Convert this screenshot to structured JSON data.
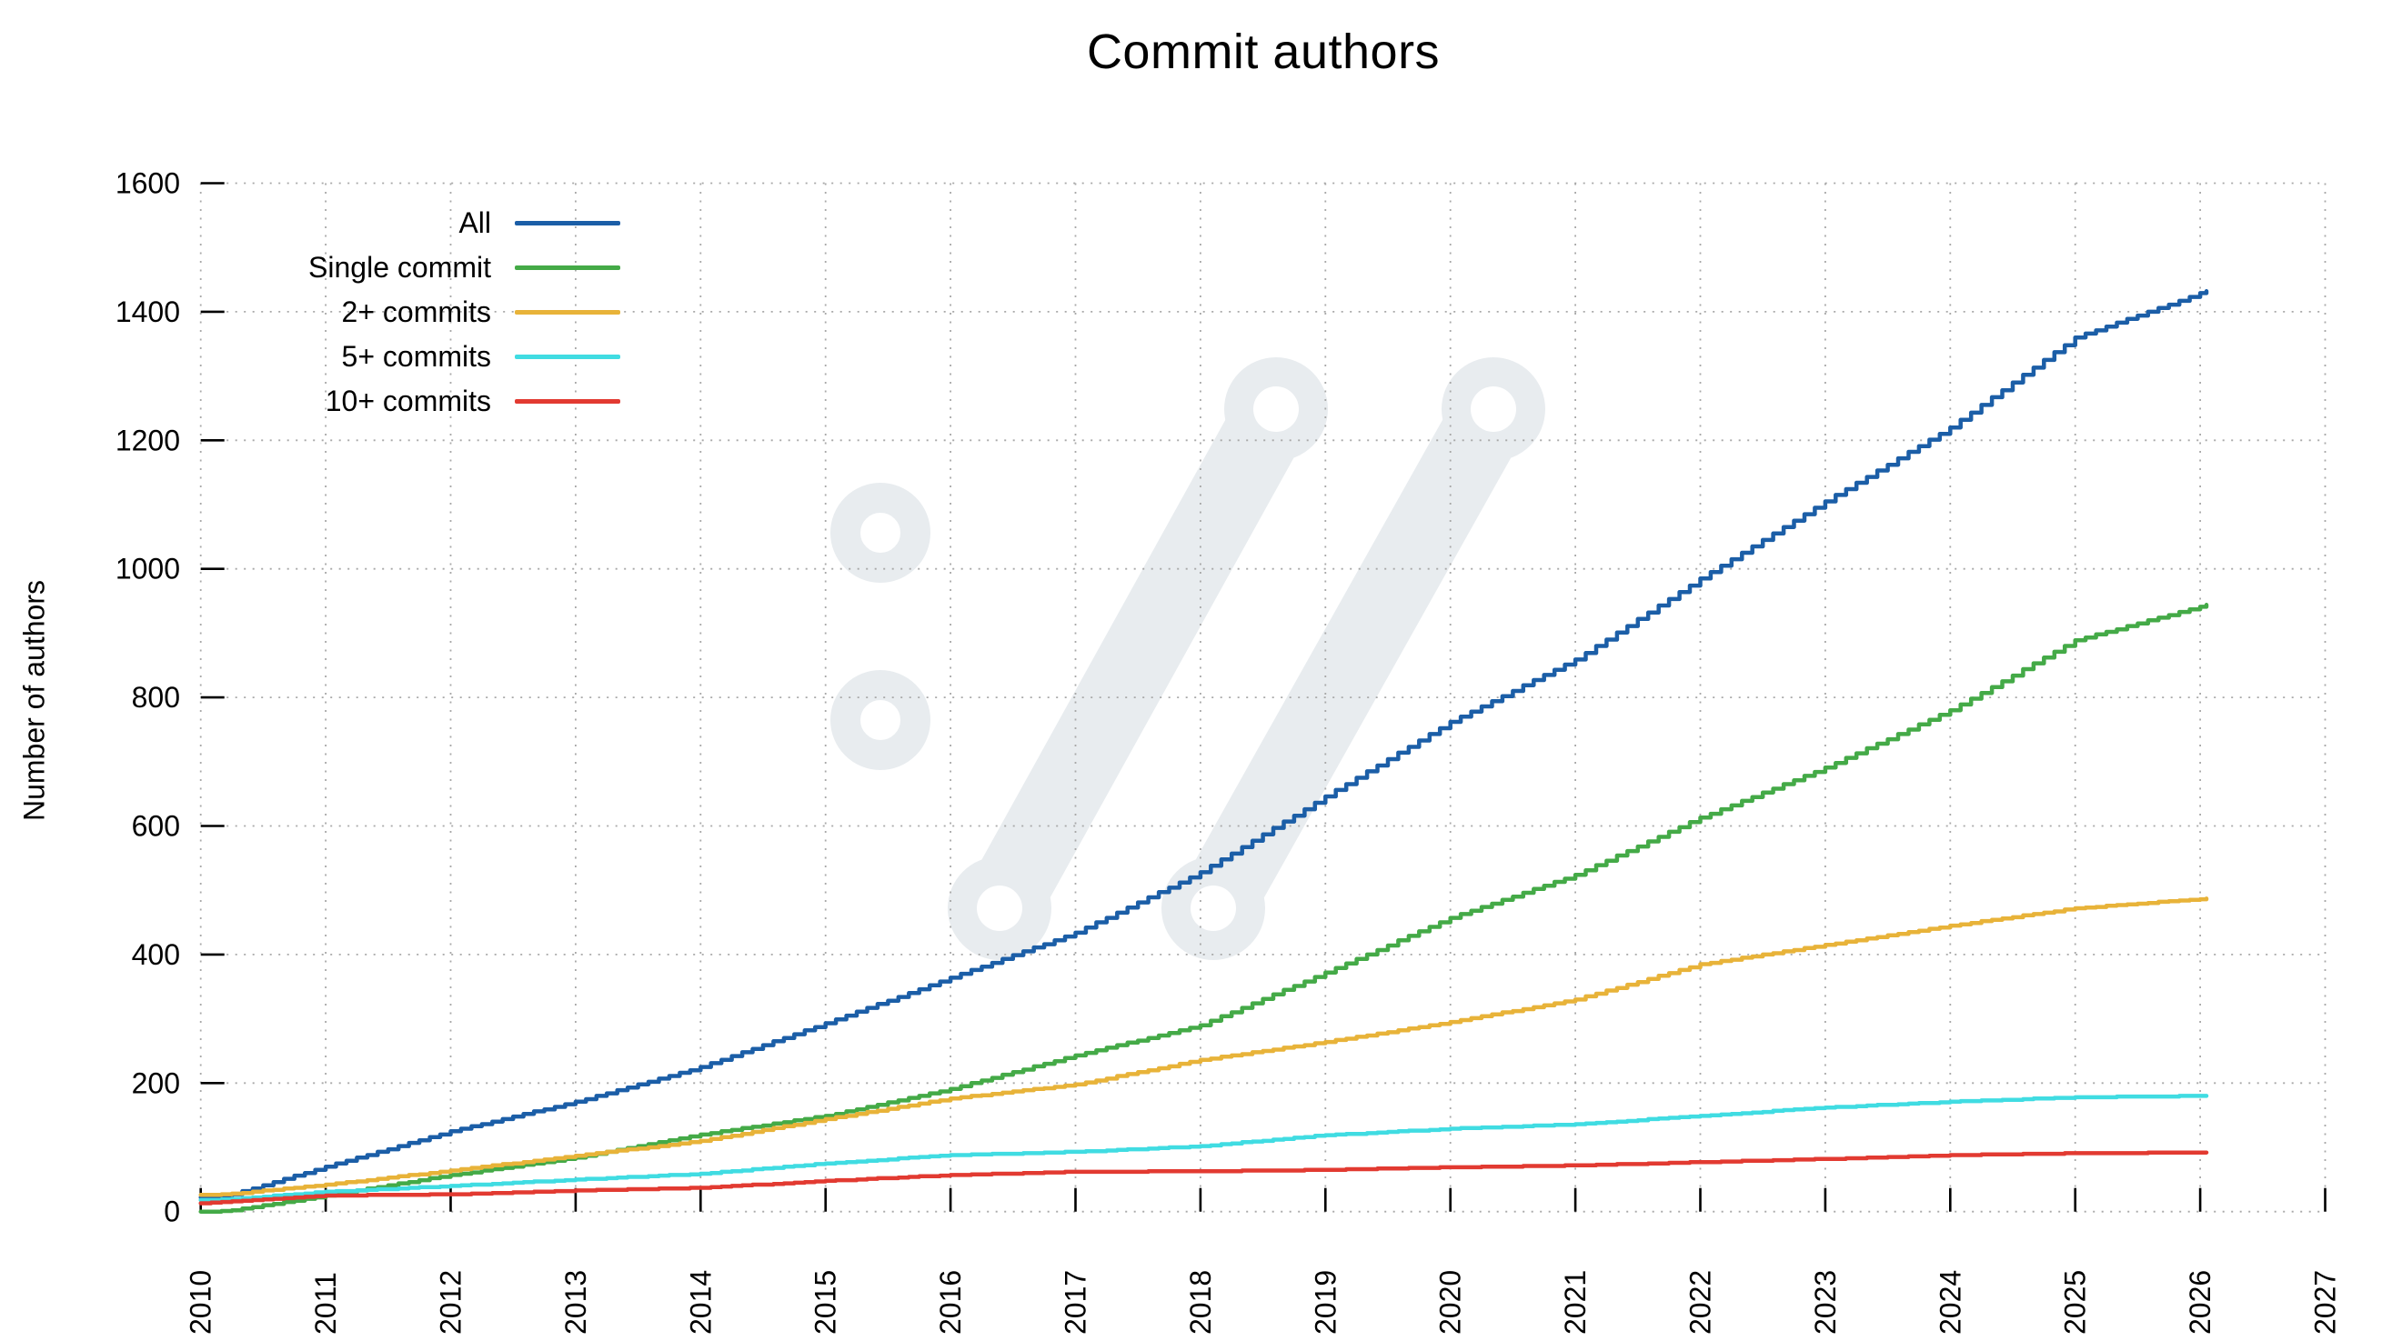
{
  "chart_data": {
    "type": "line",
    "title": "Commit authors",
    "xlabel": "",
    "ylabel": "Number of authors",
    "x_range": [
      2010,
      2027
    ],
    "y_range": [
      0,
      1600
    ],
    "x_ticks": [
      2010,
      2011,
      2012,
      2013,
      2014,
      2015,
      2016,
      2017,
      2018,
      2019,
      2020,
      2021,
      2022,
      2023,
      2024,
      2025,
      2026,
      2027
    ],
    "y_ticks": [
      0,
      200,
      400,
      600,
      800,
      1000,
      1200,
      1400,
      1600
    ],
    "grid": "dotted",
    "grid_color": "#a8a8a8",
    "axis_color": "#000000",
    "legend_position": "top-left-inside",
    "watermark_icon": "pipewire-logo-watermark",
    "watermark_color": "#e8ecef",
    "series": [
      {
        "name": "All",
        "color": "#1b5ea7",
        "anchors": {
          "x": [
            2010,
            2010.2,
            2011,
            2012,
            2013,
            2014,
            2015,
            2016,
            2017,
            2018,
            2019,
            2020,
            2021,
            2022,
            2023,
            2024,
            2025,
            2026.05
          ],
          "y": [
            22,
            24,
            70,
            125,
            171,
            225,
            293,
            364,
            434,
            528,
            646,
            762,
            859,
            985,
            1105,
            1220,
            1360,
            1432
          ]
        }
      },
      {
        "name": "Single commit",
        "color": "#44aa47",
        "anchors": {
          "x": [
            2010,
            2010.2,
            2011,
            2012,
            2013,
            2014,
            2015,
            2016,
            2017,
            2018,
            2019,
            2020,
            2021,
            2022,
            2023,
            2024,
            2025,
            2026.05
          ],
          "y": [
            0,
            1,
            25,
            57,
            84,
            120,
            149,
            191,
            243,
            290,
            372,
            457,
            524,
            613,
            691,
            780,
            889,
            944
          ]
        }
      },
      {
        "name": "2+ commits",
        "color": "#e8b339",
        "anchors": {
          "x": [
            2010,
            2010.2,
            2011,
            2012,
            2013,
            2014,
            2015,
            2016,
            2017,
            2018,
            2019,
            2020,
            2021,
            2022,
            2023,
            2024,
            2025,
            2026.05
          ],
          "y": [
            26,
            27,
            42,
            64,
            87,
            110,
            144,
            176,
            198,
            236,
            264,
            295,
            330,
            385,
            415,
            445,
            472,
            487
          ]
        }
      },
      {
        "name": "5+ commits",
        "color": "#40dce2",
        "anchors": {
          "x": [
            2010,
            2010.2,
            2011,
            2012,
            2013,
            2014,
            2015,
            2016,
            2017,
            2018,
            2019,
            2020,
            2021,
            2022,
            2023,
            2024,
            2025,
            2026.05
          ],
          "y": [
            18,
            19,
            31,
            40,
            50,
            59,
            75,
            88,
            93,
            102,
            119,
            129,
            136,
            149,
            162,
            171,
            178,
            180
          ]
        }
      },
      {
        "name": "10+ commits",
        "color": "#e23a31",
        "anchors": {
          "x": [
            2010,
            2010.2,
            2011,
            2012,
            2013,
            2014,
            2015,
            2016,
            2017,
            2018,
            2019,
            2020,
            2021,
            2022,
            2023,
            2024,
            2025,
            2026.05
          ],
          "y": [
            13,
            15,
            25,
            27,
            33,
            37,
            48,
            57,
            62,
            63,
            65,
            69,
            72,
            77,
            82,
            88,
            91,
            92
          ]
        }
      }
    ]
  }
}
